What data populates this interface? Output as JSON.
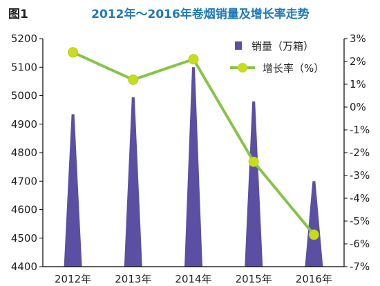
{
  "figure_label": "图1",
  "chart_data": {
    "type": "bar",
    "title": "2012年～2016年卷烟销量及增长率走势",
    "categories": [
      "2012年",
      "2013年",
      "2014年",
      "2015年",
      "2016年"
    ],
    "series": [
      {
        "name": "销量（万箱）",
        "type": "bar",
        "axis": "left",
        "values": [
          4935,
          4995,
          5100,
          4980,
          4700
        ],
        "color": "#5a4fa3"
      },
      {
        "name": "增长率（%）",
        "type": "line",
        "axis": "right",
        "values": [
          2.4,
          1.2,
          2.1,
          -2.4,
          -5.6
        ],
        "color": "#86c449",
        "marker_color": "#c8dc1e"
      }
    ],
    "left_axis": {
      "ylim": [
        4400,
        5200
      ],
      "ticks": [
        "4400",
        "4500",
        "4600",
        "4700",
        "4800",
        "4900",
        "5000",
        "5100",
        "5200"
      ]
    },
    "right_axis": {
      "ylim": [
        -7,
        3
      ],
      "ticks": [
        "3%",
        "2%",
        "1%",
        "0%",
        "-1%",
        "-2%",
        "-3%",
        "-4%",
        "-5%",
        "-6%",
        "-7%"
      ]
    },
    "grid": false,
    "legend_position": "top-right"
  }
}
